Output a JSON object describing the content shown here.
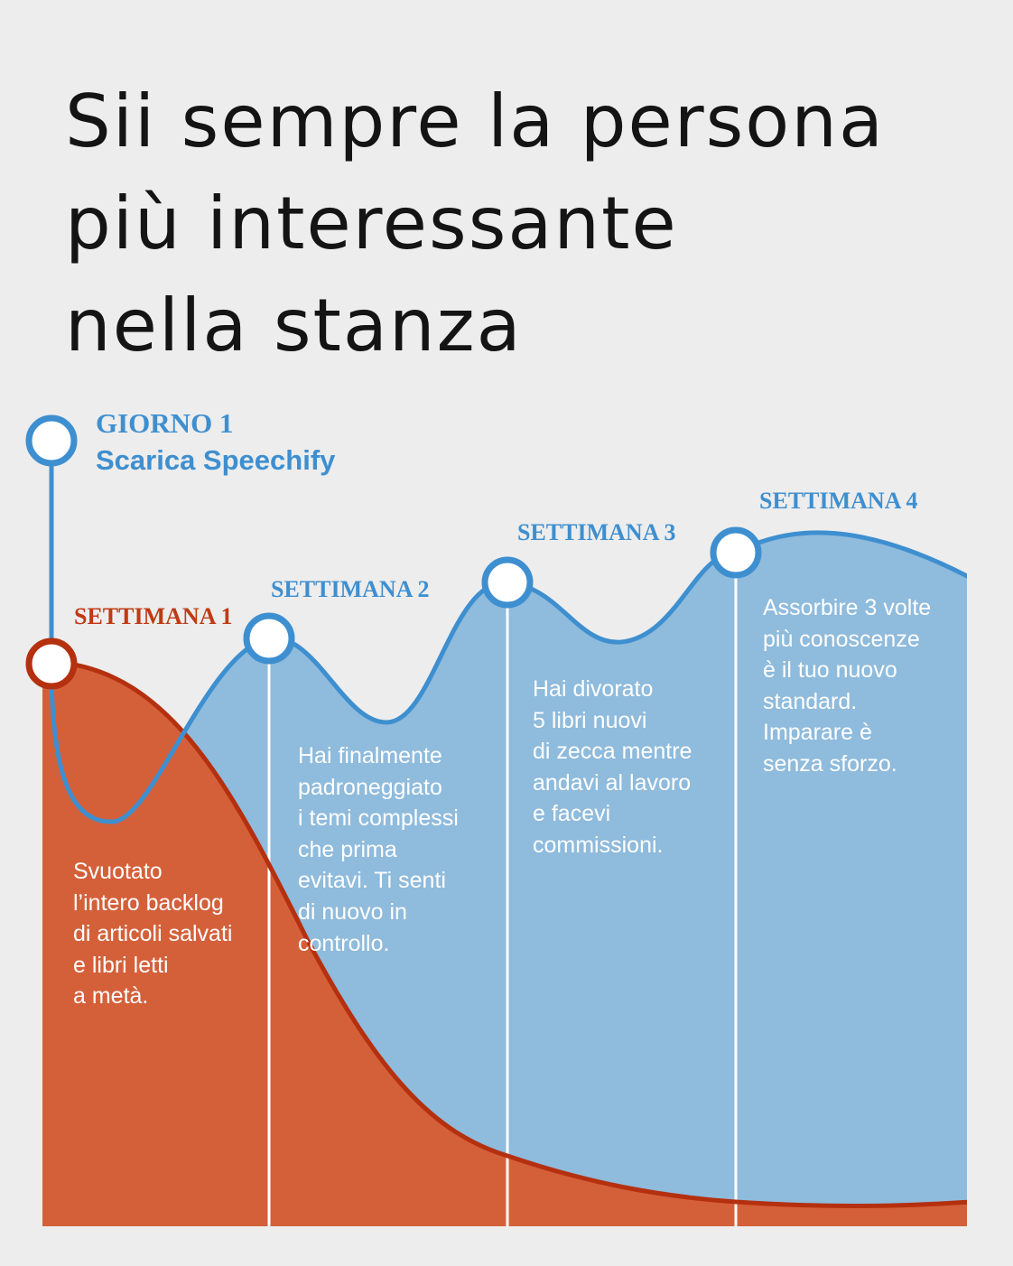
{
  "title_lines": [
    "Sii sempre la persona",
    "più interessante",
    "nella stanza"
  ],
  "milestones": {
    "day1": {
      "label": "GIORNO 1",
      "subtitle": "Scarica Speechify"
    },
    "week1": {
      "label": "SETTIMANA 1",
      "text": "Svuotato\nl’intero backlog\ndi articoli salvati\ne libri letti\na metà."
    },
    "week2": {
      "label": "SETTIMANA 2",
      "text": "Hai finalmente\npadroneggiato\ni temi complessi\nche prima\nevitavi. Ti senti\ndi nuovo in\ncontrollo."
    },
    "week3": {
      "label": "SETTIMANA 3",
      "text": "Hai divorato\n5 libri nuovi\ndi zecca mentre\nandavi al lavoro\ne facevi\ncommissioni."
    },
    "week4": {
      "label": "SETTIMANA 4",
      "text": "Assorbire 3 volte\npiù conoscenze\nè il tuo nuovo\nstandard.\nImparare è\nsenza sforzo."
    }
  },
  "colors": {
    "blue_line": "#3e8fd0",
    "blue_fill": "#8fbbdc",
    "red_line": "#b5300e",
    "red_fill": "#d4603a",
    "background": "#ededed"
  }
}
